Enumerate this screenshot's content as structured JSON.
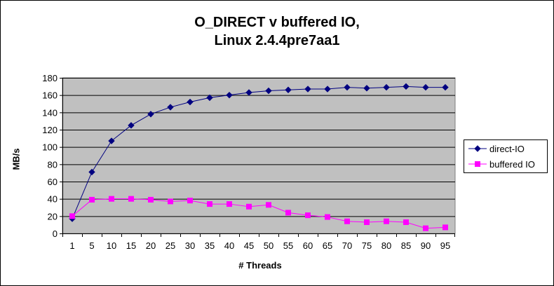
{
  "chart_data": {
    "type": "line",
    "title": "O_DIRECT v buffered IO,",
    "subtitle": "Linux 2.4.4pre7aa1",
    "xlabel": "# Threads",
    "ylabel": "MB/s",
    "ylim": [
      0,
      180
    ],
    "yticks": [
      0,
      20,
      40,
      60,
      80,
      100,
      120,
      140,
      160,
      180
    ],
    "grid": true,
    "plot_background": "#c0c0c0",
    "legend_position": "right",
    "categories": [
      "1",
      "5",
      "10",
      "15",
      "20",
      "25",
      "30",
      "35",
      "40",
      "45",
      "50",
      "55",
      "60",
      "65",
      "70",
      "75",
      "80",
      "85",
      "90",
      "95"
    ],
    "series": [
      {
        "name": "direct-IO",
        "color": "#000080",
        "marker": "diamond",
        "values": [
          17,
          71,
          107,
          125,
          138,
          146,
          152,
          157,
          160,
          163,
          165,
          166,
          167,
          167,
          169,
          168,
          169,
          170,
          169,
          169
        ]
      },
      {
        "name": "buffered IO",
        "color": "#ff00ff",
        "marker": "square",
        "values": [
          20,
          39,
          40,
          40,
          39,
          37,
          38,
          34,
          34,
          31,
          33,
          24,
          21,
          19,
          14,
          13,
          14,
          13,
          6,
          7
        ]
      }
    ]
  }
}
